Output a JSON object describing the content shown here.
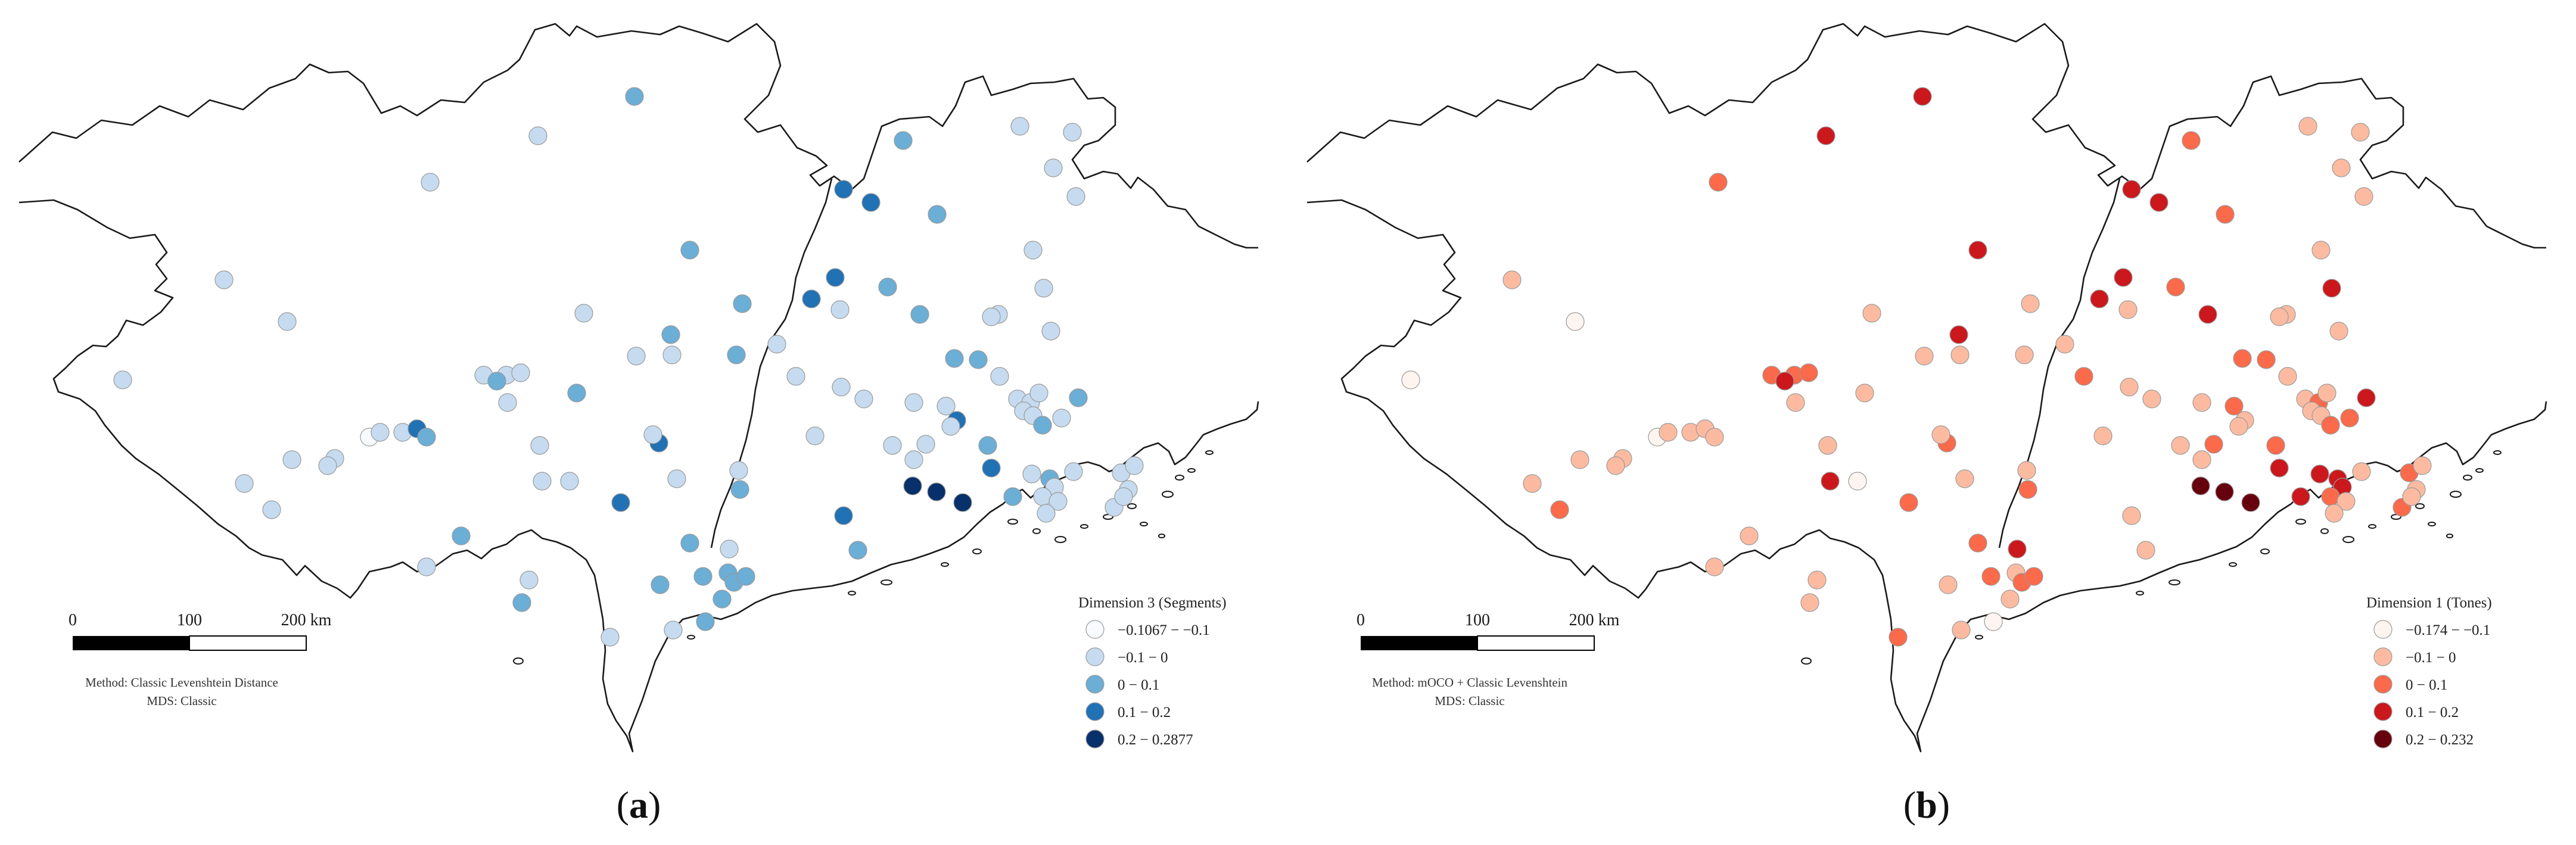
{
  "panels": [
    {
      "id": "a",
      "label": "a",
      "legend_title": "Dimension 3 (Segments)",
      "legend_items": [
        {
          "label": "−0.1067 − −0.1",
          "color": "#f7fbff"
        },
        {
          "label": "−0.1 − 0",
          "color": "#c6dbef"
        },
        {
          "label": "0 − 0.1",
          "color": "#6baed6"
        },
        {
          "label": "0.1 − 0.2",
          "color": "#2171b5"
        },
        {
          "label": "0.2 − 0.2877",
          "color": "#08306b"
        }
      ],
      "scale_labels": [
        "0",
        "100",
        "200 km"
      ],
      "method_line": "Method: Classic Levenshtein Distance",
      "mds_line": "MDS: Classic"
    },
    {
      "id": "b",
      "label": "b",
      "legend_title": "Dimension 1 (Tones)",
      "legend_items": [
        {
          "label": "−0.174 − −0.1",
          "color": "#fff5f0"
        },
        {
          "label": "−0.1 − 0",
          "color": "#fcbba1"
        },
        {
          "label": "0 − 0.1",
          "color": "#fb6a4a"
        },
        {
          "label": "0.1 − 0.2",
          "color": "#cb181d"
        },
        {
          "label": "0.2 − 0.232",
          "color": "#67000d"
        }
      ],
      "scale_labels": [
        "0",
        "100",
        "200 km"
      ],
      "method_line": "Method: mOCO + Classic Levenshtein",
      "mds_line": "MDS: Classic"
    }
  ]
}
